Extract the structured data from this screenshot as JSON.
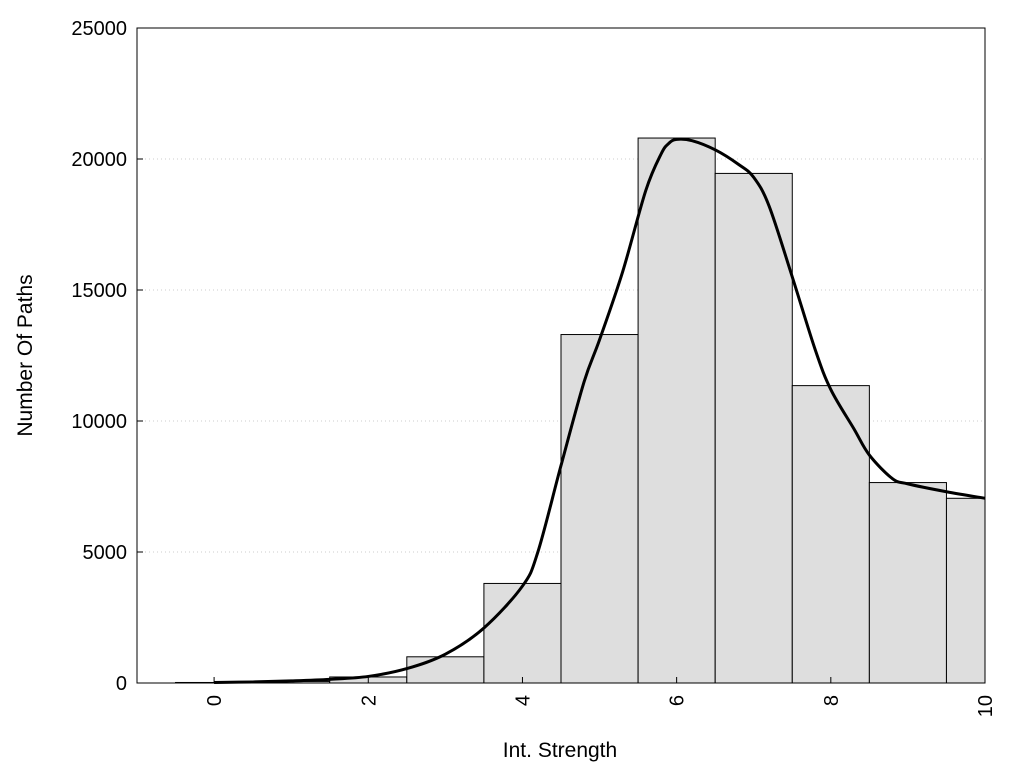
{
  "chart_data": {
    "type": "bar",
    "title": "",
    "xlabel": "Int. Strength",
    "ylabel": "Number Of Paths",
    "xlim": [
      -1,
      10
    ],
    "ylim": [
      0,
      25000
    ],
    "x_ticks": [
      0,
      2,
      4,
      6,
      8,
      10
    ],
    "y_ticks": [
      0,
      5000,
      10000,
      15000,
      20000,
      25000
    ],
    "grid": "horizontal-dotted",
    "legend": "none",
    "colors": {
      "bar_fill": "#dedede",
      "bar_stroke": "#000000",
      "curve": "#000000",
      "grid": "#cccccc"
    },
    "bars": {
      "x": [
        0,
        1,
        2,
        3,
        4,
        5,
        6,
        7,
        8,
        9,
        10
      ],
      "width": 1,
      "values": [
        20,
        60,
        230,
        1000,
        3800,
        13300,
        20800,
        19450,
        11350,
        7650,
        7050
      ]
    },
    "curve": {
      "x": [
        0,
        0.5,
        1,
        1.5,
        2,
        2.5,
        3,
        3.5,
        4,
        4.2,
        4.5,
        4.8,
        5,
        5.3,
        5.6,
        5.8,
        5.9,
        6,
        6.2,
        6.5,
        6.8,
        7,
        7.2,
        7.5,
        7.8,
        8,
        8.3,
        8.5,
        8.8,
        9,
        9.5,
        10
      ],
      "values": [
        20,
        40,
        80,
        140,
        250,
        550,
        1100,
        2100,
        3700,
        5000,
        8300,
        11500,
        13100,
        15700,
        18800,
        20200,
        20600,
        20750,
        20700,
        20350,
        19800,
        19300,
        18200,
        15500,
        12700,
        11200,
        9700,
        8700,
        7800,
        7600,
        7300,
        7050
      ]
    }
  }
}
